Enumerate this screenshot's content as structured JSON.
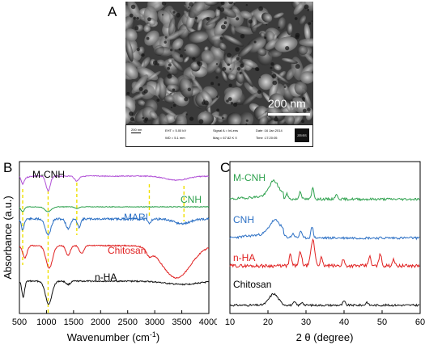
{
  "panel_a": {
    "letter": "A",
    "scale_bar_label": "200 nm",
    "info_bar": {
      "scale_small": "200 nm",
      "eht": "EHT = 5.00 kV",
      "wd": "WD = 5.1 mm",
      "signal": "Signal A = InLens",
      "mag": "Mag = 67.82 K X",
      "date": "Date :16 Jan 2014",
      "time": "Time :17:20:05",
      "logo": "ZEISS"
    }
  },
  "panel_b": {
    "letter": "B",
    "ylabel": "Absorbance (a.u.)",
    "xlabel_main": "Wavenumber (cm",
    "xlabel_sup": "-1",
    "xlabel_close": ")",
    "xticks": [
      "500",
      "1000",
      "1500",
      "2000",
      "2500",
      "3000",
      "3500",
      "4000"
    ],
    "labels": {
      "mcnh": "M-CNH",
      "cnh": "CNH",
      "mari": "MARI",
      "chitosan": "Chitosan",
      "nha": "n-HA"
    },
    "colors": {
      "mcnh": "#b04fd6",
      "cnh": "#2ca04c",
      "mari": "#2b6fc4",
      "chitosan": "#e02020",
      "nha": "#111111",
      "guide": "#f0e000"
    }
  },
  "panel_c": {
    "letter": "C",
    "xlabel": "2 θ (degree)",
    "xticks": [
      "10",
      "20",
      "30",
      "40",
      "50",
      "60"
    ],
    "labels": {
      "mcnh": "M-CNH",
      "cnh": "CNH",
      "nha": "n-HA",
      "chitosan": "Chitosan"
    },
    "colors": {
      "mcnh": "#2ca04c",
      "cnh": "#2b6fc4",
      "nha": "#e02020",
      "chitosan": "#111111"
    }
  }
}
